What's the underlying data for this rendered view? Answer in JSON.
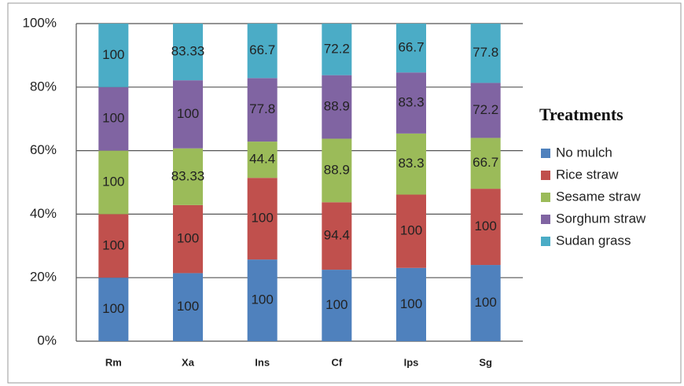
{
  "chart_data": {
    "type": "bar",
    "stacking": "percent",
    "categories": [
      "Rm",
      "Xa",
      "Ins",
      "Cf",
      "Ips",
      "Sg"
    ],
    "series": [
      {
        "name": "No mulch",
        "color": "#4f81bd",
        "values": [
          100,
          100,
          100,
          100,
          100,
          100
        ]
      },
      {
        "name": "Rice straw",
        "color": "#c0504d",
        "values": [
          100,
          100,
          100,
          94.4,
          100,
          100
        ]
      },
      {
        "name": "Sesame straw",
        "color": "#9bbb59",
        "values": [
          100,
          83.33,
          44.4,
          88.9,
          83.3,
          66.7
        ]
      },
      {
        "name": "Sorghum straw",
        "color": "#8064a2",
        "values": [
          100,
          100,
          77.8,
          88.9,
          83.3,
          72.2
        ]
      },
      {
        "name": "Sudan grass",
        "color": "#4bacc6",
        "values": [
          100,
          83.33,
          66.7,
          72.2,
          66.7,
          77.8
        ]
      }
    ],
    "ylim": [
      0,
      100
    ],
    "yticks": [
      {
        "value": 0,
        "label": "0%"
      },
      {
        "value": 20,
        "label": "20%"
      },
      {
        "value": 40,
        "label": "40%"
      },
      {
        "value": 60,
        "label": "60%"
      },
      {
        "value": 80,
        "label": "80%"
      },
      {
        "value": 100,
        "label": "100%"
      }
    ],
    "grid": true,
    "legend": {
      "title": "Treatments",
      "position": "right"
    }
  }
}
